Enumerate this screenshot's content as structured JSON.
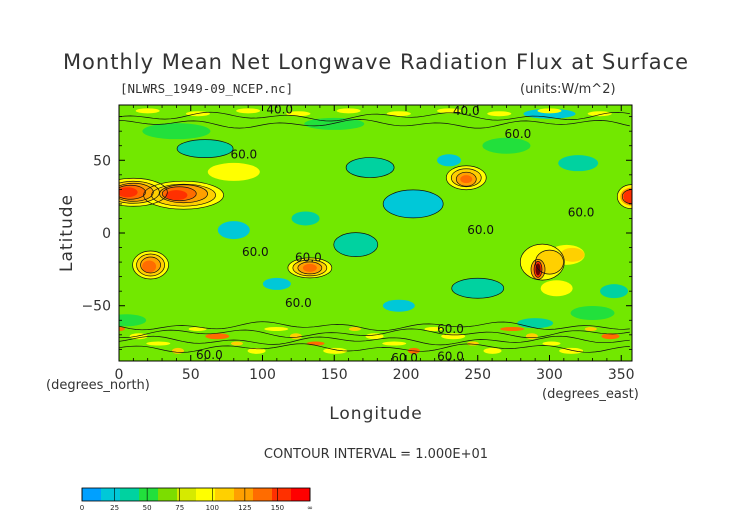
{
  "chart_data": {
    "type": "contour",
    "title": "Monthly Mean Net Longwave Radiation Flux at Surface",
    "source_file": "[NLWRS_1949-09_NCEP.nc]",
    "units": "(units:W/m^2)",
    "xlabel": "Longitude",
    "ylabel": "Latitude",
    "x_unit_label": "(degrees_east)",
    "y_unit_label": "(degrees_north)",
    "xlim": [
      0,
      357.5
    ],
    "ylim": [
      -88,
      88
    ],
    "x_ticks": [
      0,
      50,
      100,
      150,
      200,
      250,
      300,
      350
    ],
    "x_tick_labels": [
      "0",
      "50",
      "100",
      "150",
      "200",
      "250",
      "300",
      "350"
    ],
    "y_ticks": [
      50,
      0,
      -50
    ],
    "y_tick_labels": [
      "50",
      "0",
      "−50"
    ],
    "contour_interval_text": "CONTOUR INTERVAL = 1.000E+01",
    "contour_labels": [
      {
        "text": "40.0",
        "lon": 112,
        "lat": 85
      },
      {
        "text": "40.0",
        "lon": 242,
        "lat": 84
      },
      {
        "text": "60.0",
        "lon": 278,
        "lat": 68
      },
      {
        "text": "60.0",
        "lon": 87,
        "lat": 54
      },
      {
        "text": "60.0",
        "lon": 252,
        "lat": 2
      },
      {
        "text": "60.0",
        "lon": 322,
        "lat": 14
      },
      {
        "text": "60.0",
        "lon": 95,
        "lat": -13
      },
      {
        "text": "60.0",
        "lon": 132,
        "lat": -17
      },
      {
        "text": "60.0",
        "lon": 125,
        "lat": -48
      },
      {
        "text": "60.0",
        "lon": 231,
        "lat": -66
      },
      {
        "text": "60.0",
        "lon": 63,
        "lat": -84
      },
      {
        "text": "60.0",
        "lon": 199,
        "lat": -86
      },
      {
        "text": "60.0",
        "lon": 231,
        "lat": -85
      }
    ],
    "features": [
      {
        "name": "north-africa-arabia-max",
        "lon": 40,
        "lat": 25,
        "value": 130
      },
      {
        "name": "sahara-west-max",
        "lon": 5,
        "lat": 28,
        "value": 130
      },
      {
        "name": "southern-africa-max",
        "lon": 22,
        "lat": -22,
        "value": 110
      },
      {
        "name": "australia-max",
        "lon": 133,
        "lat": -24,
        "value": 100
      },
      {
        "name": "north-america-max",
        "lon": 242,
        "lat": 38,
        "value": 110
      },
      {
        "name": "andes-peak",
        "lon": 292,
        "lat": -25,
        "value": 170
      },
      {
        "name": "sahara-east-edge-max",
        "lon": 355,
        "lat": 25,
        "value": 130
      },
      {
        "name": "antarctic-coast-band",
        "lon": 180,
        "lat": -72,
        "value": 80
      }
    ],
    "colorbar": {
      "ticks": [
        "0",
        "25",
        "50",
        "75",
        "100",
        "125",
        "150",
        "∞"
      ],
      "colors": [
        "#00a0ff",
        "#00c8d8",
        "#00d2a0",
        "#22e03c",
        "#7cdd00",
        "#d6ea00",
        "#ffff00",
        "#ffd000",
        "#ffa000",
        "#ff6c00",
        "#ff3000",
        "#ff0000"
      ]
    },
    "field_colors": {
      "base": "#72e800",
      "low_a": "#00d2a0",
      "low_b": "#00c8d8",
      "mid": "#22e03c",
      "high_a": "#ffff00",
      "high_b": "#ffd000",
      "high_c": "#ffa000",
      "high_d": "#ff6c00",
      "high_e": "#ff3000",
      "peak": "#6b0000"
    }
  }
}
